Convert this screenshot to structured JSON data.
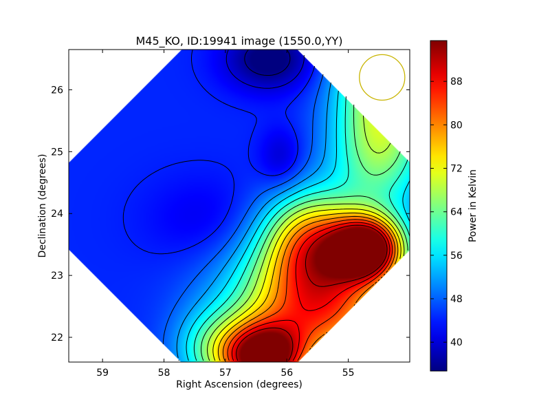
{
  "chart_data": {
    "type": "heatmap",
    "title": "M45_KO, ID:19941 image (1550.0,YY)",
    "xlabel": "Right Ascension (degrees)",
    "ylabel": "Declination (degrees)",
    "xlim": [
      59.55,
      54.0
    ],
    "ylim": [
      21.6,
      26.65
    ],
    "xticks": [
      {
        "value": 59,
        "label": "59"
      },
      {
        "value": 58,
        "label": "58"
      },
      {
        "value": 57,
        "label": "57"
      },
      {
        "value": 56,
        "label": "56"
      },
      {
        "value": 55,
        "label": "55"
      }
    ],
    "yticks": [
      {
        "value": 22,
        "label": "22"
      },
      {
        "value": 23,
        "label": "23"
      },
      {
        "value": 24,
        "label": "24"
      },
      {
        "value": 25,
        "label": "25"
      },
      {
        "value": 26,
        "label": "26"
      }
    ],
    "colorbar": {
      "label": "Power in Kelvin",
      "min": 34.7,
      "max": 95.5,
      "colormap": "jet",
      "ticks": [
        {
          "value": 40,
          "label": "40"
        },
        {
          "value": 48,
          "label": "48"
        },
        {
          "value": 56,
          "label": "56"
        },
        {
          "value": 64,
          "label": "64"
        },
        {
          "value": 72,
          "label": "72"
        },
        {
          "value": 80,
          "label": "80"
        },
        {
          "value": 88,
          "label": "88"
        }
      ]
    },
    "field_blobs": [
      {
        "ra": 54.35,
        "dec": 26.4,
        "value": 63,
        "sigma_ra": 0.55,
        "sigma_dec": 0.55
      },
      {
        "ra": 54.5,
        "dec": 25.2,
        "value": 68,
        "sigma_ra": 0.55,
        "sigma_dec": 0.8
      },
      {
        "ra": 54.7,
        "dec": 23.45,
        "value": 93,
        "sigma_ra": 0.4,
        "sigma_dec": 0.35
      },
      {
        "ra": 55.5,
        "dec": 22.5,
        "value": 84,
        "sigma_ra": 0.95,
        "sigma_dec": 0.75
      },
      {
        "ra": 56.4,
        "dec": 21.65,
        "value": 91,
        "sigma_ra": 0.45,
        "sigma_dec": 0.4
      },
      {
        "ra": 55.6,
        "dec": 23.6,
        "value": 72,
        "sigma_ra": 0.55,
        "sigma_dec": 0.55
      },
      {
        "ra": 57.2,
        "dec": 21.8,
        "value": 58,
        "sigma_ra": 0.45,
        "sigma_dec": 0.45
      },
      {
        "ra": 56.3,
        "dec": 26.5,
        "value": 33,
        "sigma_ra": 0.5,
        "sigma_dec": 0.35
      },
      {
        "ra": 56.1,
        "dec": 24.9,
        "value": 39,
        "sigma_ra": 0.25,
        "sigma_dec": 0.35
      },
      {
        "ra": 57.3,
        "dec": 23.9,
        "value": 41,
        "sigma_ra": 0.7,
        "sigma_dec": 0.5
      }
    ],
    "background_level": 44.5,
    "contour_levels": [
      36,
      40,
      44,
      48,
      52,
      56,
      60,
      64,
      68,
      72,
      76,
      80,
      84,
      88,
      92
    ],
    "circle_marker": {
      "ra": 54.45,
      "dec": 26.2,
      "radius_deg": 0.37,
      "color": "#c8b400"
    },
    "field_mask": "octagon"
  }
}
